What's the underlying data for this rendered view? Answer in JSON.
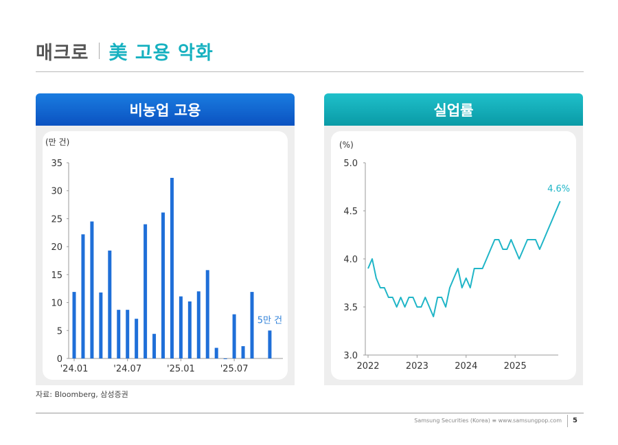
{
  "header": {
    "section": "매크로",
    "title": "美 고용 악화"
  },
  "panels": {
    "left_title": "비농업 고용",
    "right_title": "실업률"
  },
  "chart_data": [
    {
      "type": "bar",
      "title": "비농업 고용",
      "ylabel": "(만 건)",
      "ylim": [
        0,
        35
      ],
      "yticks": [
        0,
        5,
        10,
        15,
        20,
        25,
        30,
        35
      ],
      "xtick_labels": [
        {
          "index": 0,
          "label": "'24.01"
        },
        {
          "index": 6,
          "label": "'24.07"
        },
        {
          "index": 12,
          "label": "'25.01"
        },
        {
          "index": 18,
          "label": "'25.07"
        }
      ],
      "values": [
        11.9,
        22.2,
        24.5,
        11.8,
        19.3,
        8.7,
        8.7,
        7.1,
        24.0,
        4.4,
        26.1,
        32.3,
        11.1,
        10.2,
        12.0,
        15.8,
        1.9,
        -0.1,
        7.9,
        2.2,
        11.9,
        null,
        5.0
      ],
      "annotation": "5만 건",
      "color": "#1f6fd8"
    },
    {
      "type": "line",
      "title": "실업률",
      "ylabel": "(%)",
      "ylim": [
        3.0,
        5.0
      ],
      "yticks": [
        "3.0",
        "3.5",
        "4.0",
        "4.5",
        "5.0"
      ],
      "xlim": [
        2022.0,
        2025.92
      ],
      "xtick_labels": [
        "2022",
        "2023",
        "2024",
        "2025"
      ],
      "values": [
        3.9,
        4.0,
        3.8,
        3.7,
        3.7,
        3.6,
        3.6,
        3.5,
        3.6,
        3.5,
        3.6,
        3.6,
        3.5,
        3.5,
        3.6,
        3.5,
        3.4,
        3.6,
        3.6,
        3.5,
        3.7,
        3.8,
        3.9,
        3.7,
        3.8,
        3.7,
        3.9,
        3.9,
        3.9,
        4.0,
        4.1,
        4.2,
        4.2,
        4.1,
        4.1,
        4.2,
        4.1,
        4.0,
        4.1,
        4.2,
        4.2,
        4.2,
        4.1,
        4.2,
        4.3,
        4.4,
        4.5,
        4.6
      ],
      "annotation": "4.6%",
      "color": "#1fb5c7"
    }
  ],
  "source": "자료: Bloomberg, 삼성증권",
  "footer": {
    "text": "Samsung Securities (Korea) ≡ www.samsungpop.com",
    "page": "5"
  }
}
